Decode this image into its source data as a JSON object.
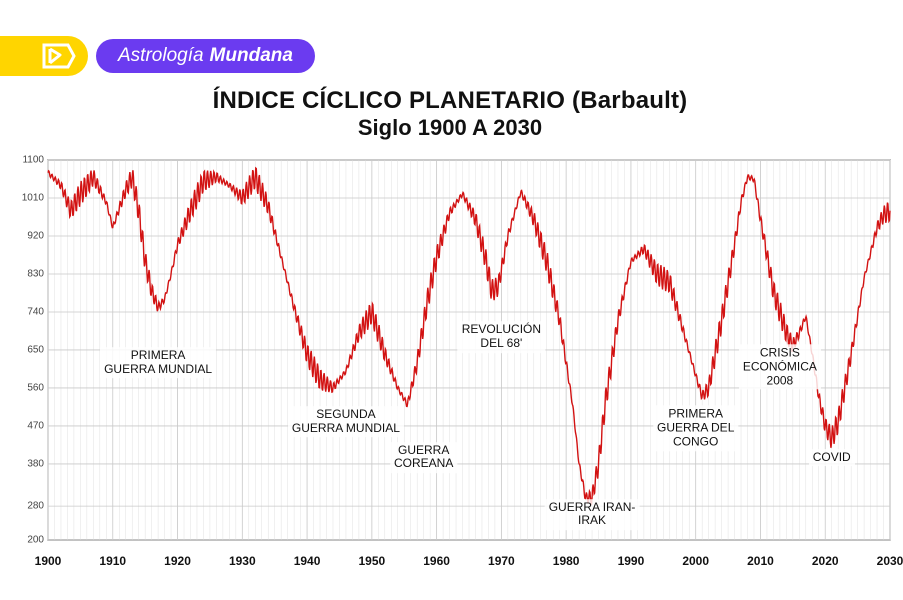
{
  "header": {
    "logo": {
      "name": "logo-icon",
      "bg": "#ffd500",
      "fg": "#ffffff"
    },
    "category": {
      "word1": "Astrología",
      "word2": "Mundana",
      "bg": "#6b3bf0",
      "fg": "#ffffff"
    }
  },
  "title": {
    "line1": "ÍNDICE CÍCLICO PLANETARIO (Barbault)",
    "line2": "Siglo 1900 A 2030"
  },
  "chart": {
    "type": "line",
    "background_color": "#ffffff",
    "plot_border_color": "#000000",
    "grid_color": "#c9c9c9",
    "minor_grid_color": "#e0e0e0",
    "line_color": "#d21212",
    "line_width": 1.4,
    "text_color": "#111111",
    "axis_label_color": "#444444",
    "xlim": [
      1900,
      2030
    ],
    "ylim": [
      200,
      1100
    ],
    "x_major": [
      1900,
      1910,
      1920,
      1930,
      1940,
      1950,
      1960,
      1970,
      1980,
      1990,
      2000,
      2010,
      2020,
      2030
    ],
    "x_minor_step": 1,
    "y_major": [
      200,
      280,
      380,
      470,
      560,
      650,
      740,
      830,
      920,
      1010,
      1100
    ],
    "label_fontsize": 10,
    "xlabel_fontsize": 12,
    "series_envelope": [
      [
        1900,
        1070
      ],
      [
        1902,
        1040
      ],
      [
        1903.5,
        980
      ],
      [
        1905,
        1020
      ],
      [
        1907,
        1060
      ],
      [
        1909,
        1000
      ],
      [
        1910,
        940
      ],
      [
        1912,
        1030
      ],
      [
        1913,
        1060
      ],
      [
        1914,
        980
      ],
      [
        1915,
        860
      ],
      [
        1916,
        790
      ],
      [
        1917,
        750
      ],
      [
        1918,
        770
      ],
      [
        1919,
        830
      ],
      [
        1920,
        900
      ],
      [
        1922,
        980
      ],
      [
        1924,
        1050
      ],
      [
        1926,
        1060
      ],
      [
        1928,
        1040
      ],
      [
        1930,
        1010
      ],
      [
        1932,
        1060
      ],
      [
        1934,
        990
      ],
      [
        1936,
        870
      ],
      [
        1938,
        750
      ],
      [
        1940,
        640
      ],
      [
        1942,
        580
      ],
      [
        1944,
        560
      ],
      [
        1946,
        600
      ],
      [
        1948,
        690
      ],
      [
        1950,
        740
      ],
      [
        1952,
        640
      ],
      [
        1954,
        560
      ],
      [
        1955.5,
        520
      ],
      [
        1957,
        620
      ],
      [
        1958.5,
        760
      ],
      [
        1960,
        870
      ],
      [
        1962,
        975
      ],
      [
        1964,
        1020
      ],
      [
        1966,
        960
      ],
      [
        1967.5,
        870
      ],
      [
        1968.5,
        790
      ],
      [
        1969.5,
        800
      ],
      [
        1971,
        920
      ],
      [
        1973,
        1025
      ],
      [
        1975,
        960
      ],
      [
        1977,
        860
      ],
      [
        1979,
        720
      ],
      [
        1981,
        520
      ],
      [
        1982,
        380
      ],
      [
        1983,
        300
      ],
      [
        1984,
        300
      ],
      [
        1985,
        380
      ],
      [
        1986,
        520
      ],
      [
        1988,
        720
      ],
      [
        1990,
        860
      ],
      [
        1992,
        890
      ],
      [
        1994,
        830
      ],
      [
        1996,
        810
      ],
      [
        1998,
        700
      ],
      [
        2000,
        590
      ],
      [
        2001,
        540
      ],
      [
        2002,
        560
      ],
      [
        2004,
        720
      ],
      [
        2006,
        900
      ],
      [
        2007,
        1000
      ],
      [
        2008,
        1060
      ],
      [
        2009,
        1055
      ],
      [
        2010,
        960
      ],
      [
        2012,
        790
      ],
      [
        2014,
        690
      ],
      [
        2015,
        660
      ],
      [
        2016,
        690
      ],
      [
        2017,
        730
      ],
      [
        2018,
        640
      ],
      [
        2019,
        540
      ],
      [
        2020,
        470
      ],
      [
        2021,
        440
      ],
      [
        2022,
        480
      ],
      [
        2024,
        640
      ],
      [
        2026,
        820
      ],
      [
        2028,
        940
      ],
      [
        2029,
        970
      ],
      [
        2030,
        980
      ]
    ],
    "ripple_amplitude": 28,
    "ripple_period_years": 0.5
  },
  "events": [
    {
      "key": "ww1",
      "text": "PRIMERA\nGUERRA MUNDIAL",
      "x_year": 1917,
      "y_val": 620
    },
    {
      "key": "ww2",
      "text": "SEGUNDA\nGUERRA MUNDIAL",
      "x_year": 1946,
      "y_val": 480
    },
    {
      "key": "korea",
      "text": "GUERRA\nCOREANA",
      "x_year": 1958,
      "y_val": 395
    },
    {
      "key": "rev68",
      "text": "REVOLUCIÓN\nDEL 68'",
      "x_year": 1970,
      "y_val": 680
    },
    {
      "key": "iran",
      "text": "GUERRA IRAN-\nIRAK",
      "x_year": 1984,
      "y_val": 260
    },
    {
      "key": "congo",
      "text": "PRIMERA\nGUERRA DEL\nCONGO",
      "x_year": 2000,
      "y_val": 465
    },
    {
      "key": "crisis",
      "text": "CRISIS\nECONÓMICA\n2008",
      "x_year": 2013,
      "y_val": 610
    },
    {
      "key": "covid",
      "text": "COVID",
      "x_year": 2021,
      "y_val": 395
    }
  ]
}
